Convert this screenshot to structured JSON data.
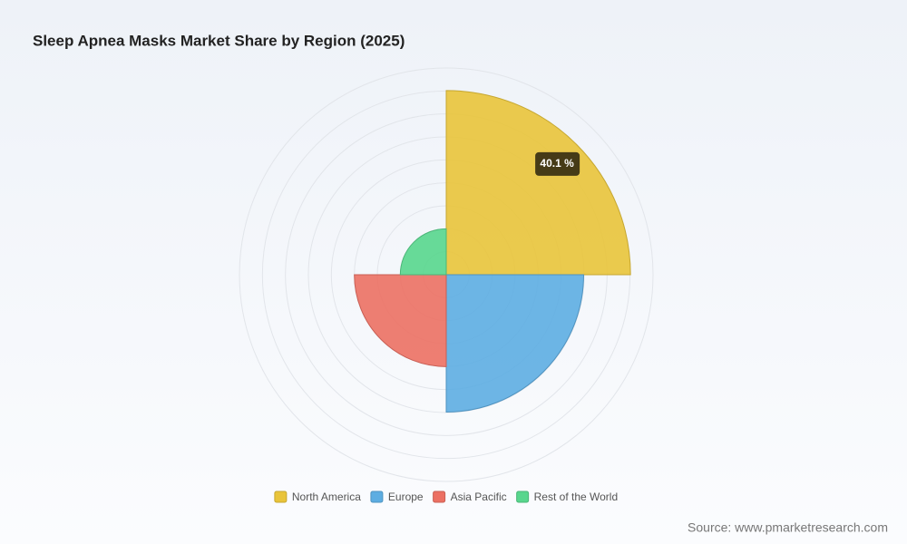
{
  "chart_data": {
    "type": "polar_area",
    "title": "Sleep Apnea Masks Market Share by Region (2025)",
    "categories": [
      "North America",
      "Europe",
      "Asia Pacific",
      "Rest of the World"
    ],
    "series": [
      {
        "values": [
          40.1,
          29.9,
          20,
          10
        ]
      }
    ],
    "colors": [
      "#e9c43a",
      "#5dade2",
      "#ec7063",
      "#58d68d"
    ],
    "rlim": [
      0,
      45
    ],
    "rticks": [
      5,
      10,
      15,
      20,
      25,
      30,
      35,
      40,
      45
    ],
    "grid": true,
    "legend": "bottom",
    "tooltip": {
      "category": "North America",
      "label": "40.1 %"
    },
    "source": "Source: www.pmarketresearch.com"
  }
}
